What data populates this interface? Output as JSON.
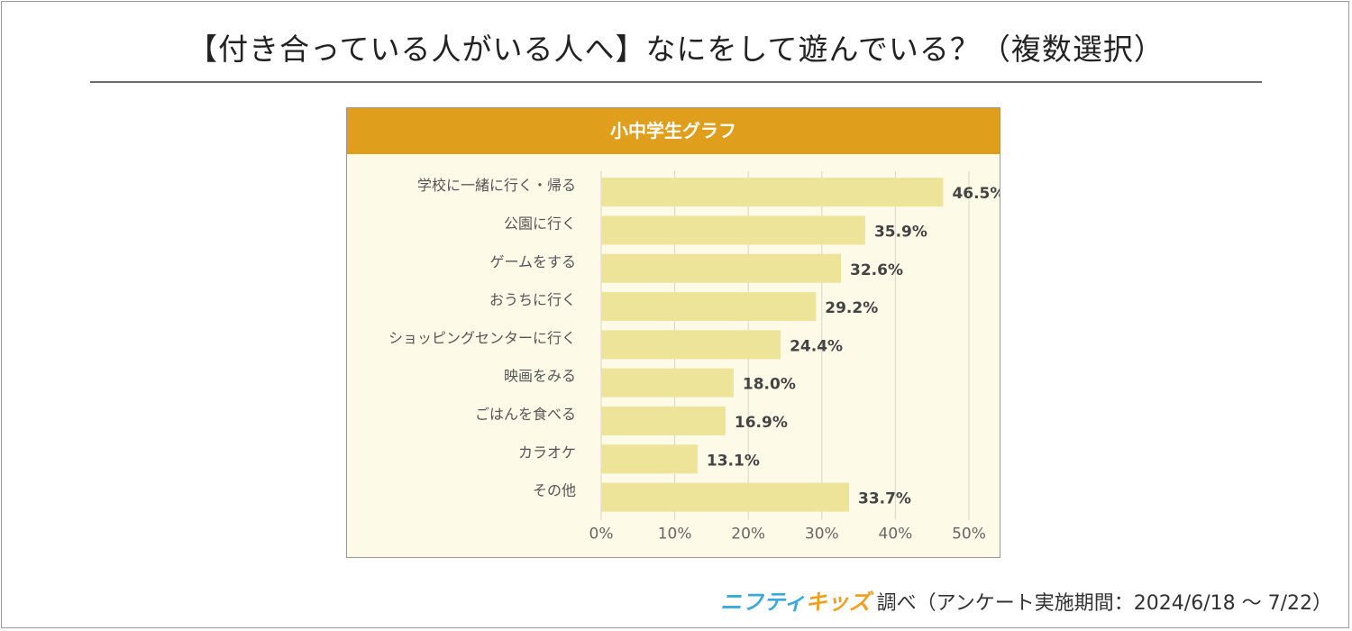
{
  "title": "【付き合っている人がいる人へ】なにをして遊んでいる？（複数選択）",
  "chart_data": {
    "type": "bar",
    "orientation": "horizontal",
    "title": "小中学生グラフ",
    "categories": [
      "学校に一緒に行く・帰る",
      "公園に行く",
      "ゲームをする",
      "おうちに行く",
      "ショッピングセンターに行く",
      "映画をみる",
      "ごはんを食べる",
      "カラオケ",
      "その他"
    ],
    "values": [
      46.5,
      35.9,
      32.6,
      29.2,
      24.4,
      18.0,
      16.9,
      13.1,
      33.7
    ],
    "value_labels": [
      "46.5%",
      "35.9%",
      "32.6%",
      "29.2%",
      "24.4%",
      "18.0%",
      "16.9%",
      "13.1%",
      "33.7%"
    ],
    "xlim": [
      0,
      50
    ],
    "xticks": [
      0,
      10,
      20,
      30,
      40,
      50
    ],
    "xtick_labels": [
      "0%",
      "10%",
      "20%",
      "30%",
      "40%",
      "50%"
    ],
    "grid": true,
    "xlabel": "",
    "ylabel": "",
    "colors": {
      "header": "#df9e1b",
      "bar": "#ede49a",
      "background": "#fdfae8",
      "grid": "#d9d6c8"
    }
  },
  "footer": {
    "brand_part1": "ニフティ",
    "brand_part2": "キッズ",
    "text": "調べ（アンケート実施期間：2024/6/18 〜 7/22）"
  }
}
